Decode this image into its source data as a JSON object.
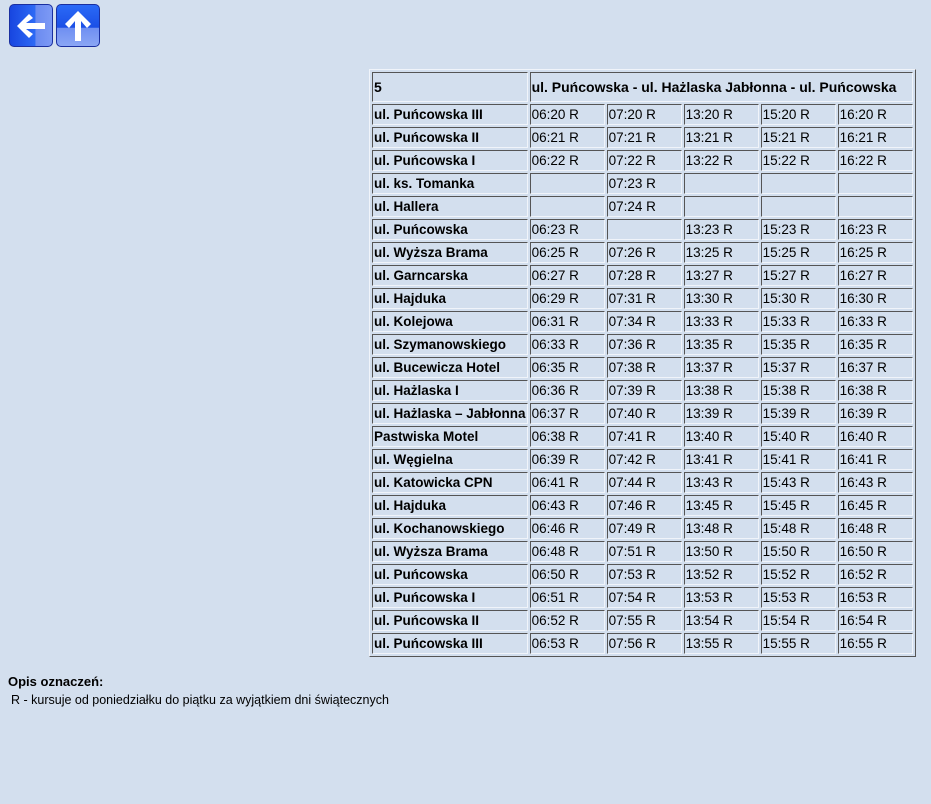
{
  "nav": {
    "back_icon": "arrow-left-icon",
    "up_icon": "arrow-up-icon"
  },
  "line": "5",
  "route": "ul. Puńcowska - ul. Hażlaska Jabłonna - ul. Puńcowska",
  "rows": [
    {
      "stop": "ul. Puńcowska III",
      "times": [
        "06:20 R",
        "07:20 R",
        "13:20 R",
        "15:20 R",
        "16:20 R"
      ]
    },
    {
      "stop": "ul. Puńcowska II",
      "times": [
        "06:21 R",
        "07:21 R",
        "13:21 R",
        "15:21 R",
        "16:21 R"
      ]
    },
    {
      "stop": "ul. Puńcowska I",
      "times": [
        "06:22 R",
        "07:22 R",
        "13:22 R",
        "15:22 R",
        "16:22 R"
      ]
    },
    {
      "stop": "ul. ks. Tomanka",
      "times": [
        "",
        "07:23 R",
        "",
        "",
        ""
      ]
    },
    {
      "stop": "ul. Hallera",
      "times": [
        "",
        "07:24 R",
        "",
        "",
        ""
      ]
    },
    {
      "stop": "ul. Puńcowska",
      "times": [
        "06:23 R",
        "",
        "13:23 R",
        "15:23 R",
        "16:23 R"
      ]
    },
    {
      "stop": "ul. Wyższa Brama",
      "times": [
        "06:25 R",
        "07:26 R",
        "13:25 R",
        "15:25 R",
        "16:25 R"
      ]
    },
    {
      "stop": "ul. Garncarska",
      "times": [
        "06:27 R",
        "07:28 R",
        "13:27 R",
        "15:27 R",
        "16:27 R"
      ]
    },
    {
      "stop": "ul. Hajduka",
      "times": [
        "06:29 R",
        "07:31 R",
        "13:30 R",
        "15:30 R",
        "16:30 R"
      ]
    },
    {
      "stop": "ul. Kolejowa",
      "times": [
        "06:31 R",
        "07:34 R",
        "13:33 R",
        "15:33 R",
        "16:33 R"
      ]
    },
    {
      "stop": "ul. Szymanowskiego",
      "times": [
        "06:33 R",
        "07:36 R",
        "13:35 R",
        "15:35 R",
        "16:35 R"
      ]
    },
    {
      "stop": "ul. Bucewicza Hotel",
      "times": [
        "06:35 R",
        "07:38 R",
        "13:37 R",
        "15:37 R",
        "16:37 R"
      ]
    },
    {
      "stop": "ul. Hażlaska I",
      "times": [
        "06:36 R",
        "07:39 R",
        "13:38 R",
        "15:38 R",
        "16:38 R"
      ]
    },
    {
      "stop": "ul. Hażlaska – Jabłonna",
      "times": [
        "06:37 R",
        "07:40 R",
        "13:39 R",
        "15:39 R",
        "16:39 R"
      ]
    },
    {
      "stop": "Pastwiska Motel",
      "times": [
        "06:38 R",
        "07:41 R",
        "13:40 R",
        "15:40 R",
        "16:40 R"
      ]
    },
    {
      "stop": "ul. Węgielna",
      "times": [
        "06:39 R",
        "07:42 R",
        "13:41 R",
        "15:41 R",
        "16:41 R"
      ]
    },
    {
      "stop": "ul. Katowicka CPN",
      "times": [
        "06:41 R",
        "07:44 R",
        "13:43 R",
        "15:43 R",
        "16:43 R"
      ]
    },
    {
      "stop": "ul. Hajduka",
      "times": [
        "06:43 R",
        "07:46 R",
        "13:45 R",
        "15:45 R",
        "16:45 R"
      ]
    },
    {
      "stop": "ul. Kochanowskiego",
      "times": [
        "06:46 R",
        "07:49 R",
        "13:48 R",
        "15:48 R",
        "16:48 R"
      ]
    },
    {
      "stop": "ul. Wyższa Brama",
      "times": [
        "06:48 R",
        "07:51 R",
        "13:50 R",
        "15:50 R",
        "16:50 R"
      ]
    },
    {
      "stop": "ul. Puńcowska",
      "times": [
        "06:50 R",
        "07:53 R",
        "13:52 R",
        "15:52 R",
        "16:52 R"
      ]
    },
    {
      "stop": "ul. Puńcowska I",
      "times": [
        "06:51 R",
        "07:54 R",
        "13:53 R",
        "15:53 R",
        "16:53 R"
      ]
    },
    {
      "stop": "ul. Puńcowska II",
      "times": [
        "06:52 R",
        "07:55 R",
        "13:54 R",
        "15:54 R",
        "16:54 R"
      ]
    },
    {
      "stop": "ul. Puńcowska III",
      "times": [
        "06:53 R",
        "07:56 R",
        "13:55 R",
        "15:55 R",
        "16:55 R"
      ]
    }
  ],
  "legend": {
    "title": "Opis oznaczeń:",
    "items": [
      "R - kursuje od poniedziałku do piątku za wyjątkiem dni świątecznych"
    ]
  }
}
